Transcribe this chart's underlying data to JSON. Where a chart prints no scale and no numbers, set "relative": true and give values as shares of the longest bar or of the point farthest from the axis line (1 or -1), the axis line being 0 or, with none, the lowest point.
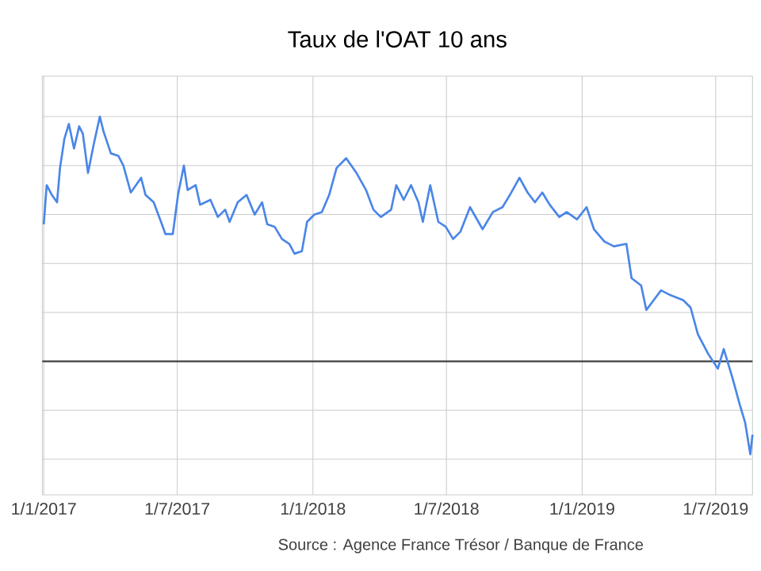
{
  "chart_data": {
    "type": "line",
    "title": "Taux de l'OAT 10 ans",
    "annotations": [
      "Source : Agence France Trésor / Banque de France"
    ],
    "relative": true,
    "grid": true,
    "color": "#4a86e8",
    "xlim": [
      "2016-12-30",
      "2019-08-20"
    ],
    "xticks": [
      {
        "value": "2017-01-01",
        "label": "1/1/2017"
      },
      {
        "value": "2017-07-01",
        "label": "1/7/2017"
      },
      {
        "value": "2018-01-01",
        "label": "1/1/2018"
      },
      {
        "value": "2018-07-01",
        "label": "1/7/2018"
      },
      {
        "value": "2019-01-01",
        "label": "1/1/2019"
      },
      {
        "value": "2019-07-01",
        "label": "1/7/2019"
      }
    ],
    "x": [
      "2017-01-01",
      "2017-01-05",
      "2017-01-12",
      "2017-01-19",
      "2017-01-23",
      "2017-01-29",
      "2017-02-04",
      "2017-02-11",
      "2017-02-18",
      "2017-02-23",
      "2017-03-02",
      "2017-03-10",
      "2017-03-18",
      "2017-03-23",
      "2017-04-02",
      "2017-04-12",
      "2017-04-19",
      "2017-04-29",
      "2017-05-06",
      "2017-05-13",
      "2017-05-19",
      "2017-05-30",
      "2017-06-09",
      "2017-06-15",
      "2017-06-25",
      "2017-07-02",
      "2017-07-10",
      "2017-07-15",
      "2017-07-26",
      "2017-08-01",
      "2017-08-15",
      "2017-08-25",
      "2017-09-04",
      "2017-09-10",
      "2017-09-21",
      "2017-10-03",
      "2017-10-14",
      "2017-10-24",
      "2017-10-31",
      "2017-11-10",
      "2017-11-20",
      "2017-11-30",
      "2017-12-07",
      "2017-12-17",
      "2017-12-24",
      "2018-01-03",
      "2018-01-13",
      "2018-01-23",
      "2018-02-02",
      "2018-02-15",
      "2018-03-01",
      "2018-03-14",
      "2018-03-24",
      "2018-04-03",
      "2018-04-17",
      "2018-04-24",
      "2018-05-04",
      "2018-05-14",
      "2018-05-24",
      "2018-05-30",
      "2018-06-09",
      "2018-06-20",
      "2018-06-30",
      "2018-07-10",
      "2018-07-20",
      "2018-08-02",
      "2018-08-19",
      "2018-09-02",
      "2018-09-15",
      "2018-09-25",
      "2018-10-08",
      "2018-10-19",
      "2018-10-29",
      "2018-11-08",
      "2018-11-18",
      "2018-12-01",
      "2018-12-11",
      "2018-12-25",
      "2019-01-07",
      "2019-01-17",
      "2019-01-31",
      "2019-02-13",
      "2019-03-02",
      "2019-03-09",
      "2019-03-22",
      "2019-03-29",
      "2019-04-08",
      "2019-04-18",
      "2019-05-01",
      "2019-05-18",
      "2019-05-28",
      "2019-06-07",
      "2019-06-21",
      "2019-07-04",
      "2019-07-12",
      "2019-07-24",
      "2019-08-03",
      "2019-08-10",
      "2019-08-17",
      "2019-08-20"
    ],
    "values": [
      0.56,
      0.72,
      0.68,
      0.65,
      0.79,
      0.91,
      0.97,
      0.87,
      0.96,
      0.93,
      0.77,
      0.89,
      1.0,
      0.94,
      0.85,
      0.84,
      0.8,
      0.69,
      0.72,
      0.75,
      0.68,
      0.65,
      0.57,
      0.52,
      0.52,
      0.68,
      0.8,
      0.7,
      0.72,
      0.64,
      0.66,
      0.59,
      0.62,
      0.57,
      0.65,
      0.68,
      0.6,
      0.65,
      0.56,
      0.55,
      0.5,
      0.48,
      0.44,
      0.45,
      0.57,
      0.6,
      0.61,
      0.68,
      0.79,
      0.83,
      0.77,
      0.7,
      0.62,
      0.59,
      0.62,
      0.72,
      0.66,
      0.72,
      0.65,
      0.57,
      0.72,
      0.57,
      0.55,
      0.5,
      0.53,
      0.63,
      0.54,
      0.61,
      0.63,
      0.68,
      0.75,
      0.69,
      0.65,
      0.69,
      0.64,
      0.59,
      0.61,
      0.58,
      0.63,
      0.54,
      0.49,
      0.47,
      0.48,
      0.34,
      0.31,
      0.21,
      0.25,
      0.29,
      0.27,
      0.25,
      0.22,
      0.11,
      0.03,
      -0.03,
      0.05,
      -0.07,
      -0.18,
      -0.25,
      -0.38,
      -0.3
    ]
  }
}
